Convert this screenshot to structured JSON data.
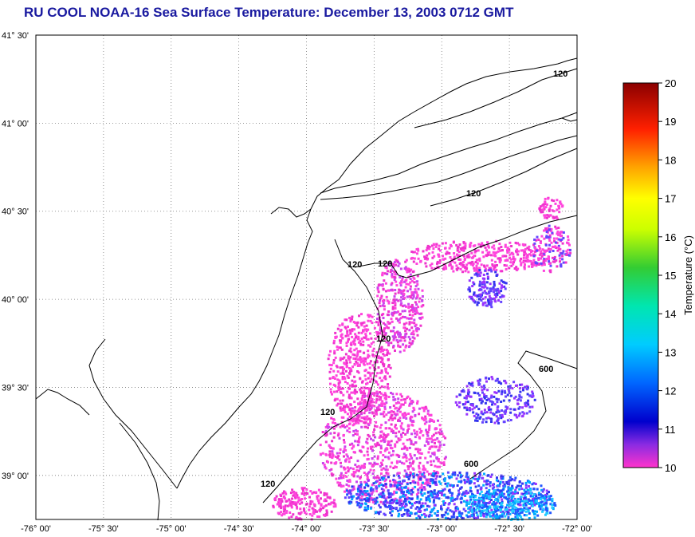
{
  "title": "RU COOL  NOAA-16  Sea Surface Temperature:  December 13, 2003 0712 GMT",
  "map": {
    "lon_labels": [
      "-76° 00'",
      "-75° 30'",
      "-75° 00'",
      "-74° 30'",
      "-74° 00'",
      "-73° 30'",
      "-73° 00'",
      "-72° 30'",
      "-72° 00'"
    ],
    "lat_labels": [
      "41° 30'",
      "41° 00'",
      "40° 30'",
      "40° 00'",
      "39° 30'",
      "39° 00'"
    ],
    "lon_range": [
      -76.0,
      -72.0
    ],
    "lat_range": [
      38.75,
      41.5
    ],
    "grid": "dotted",
    "isobath_labels": [
      "120",
      "120",
      "120",
      "120",
      "120",
      "120",
      "120",
      "600",
      "600"
    ]
  },
  "colorbar": {
    "label": "Temperature (°C)",
    "min": 10,
    "max": 20,
    "ticks": [
      "20",
      "19",
      "18",
      "17",
      "16",
      "15",
      "14",
      "13",
      "12",
      "11",
      "10"
    ],
    "palette": "jet"
  }
}
